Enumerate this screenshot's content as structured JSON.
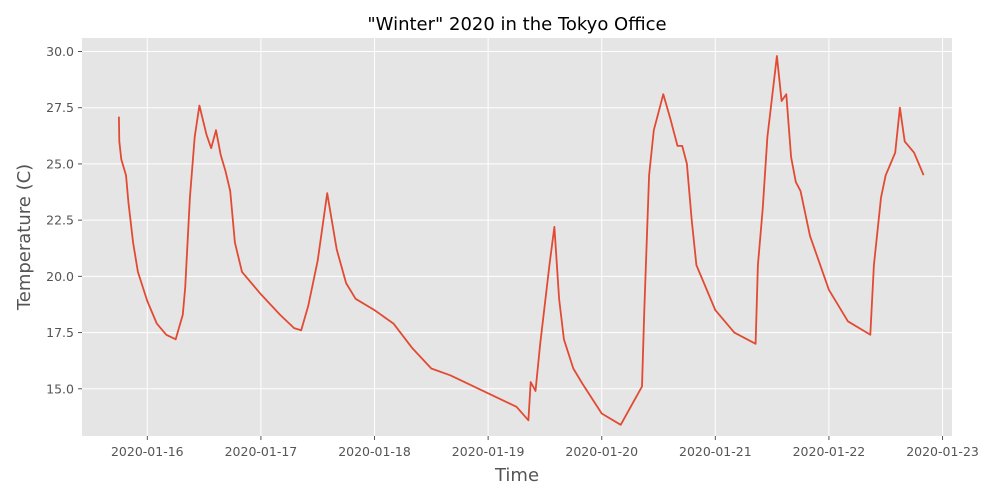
{
  "chart_data": {
    "type": "line",
    "title": "\"Winter\" 2020 in the Tokyo Office",
    "xlabel": "Time",
    "ylabel": "Temperature (C)",
    "x_tick_labels": [
      "2020-01-16",
      "2020-01-17",
      "2020-01-18",
      "2020-01-19",
      "2020-01-20",
      "2020-01-21",
      "2020-01-22",
      "2020-01-23"
    ],
    "y_tick_labels": [
      "15.0",
      "17.5",
      "20.0",
      "22.5",
      "25.0",
      "27.5",
      "30.0"
    ],
    "xlim": [
      "2020-01-15 10:12",
      "2020-01-23 02:00"
    ],
    "ylim": [
      12.9,
      30.6
    ],
    "grid": true,
    "colors": {
      "line": "#E24A33",
      "plot_background": "#E5E5E5",
      "grid": "#FFFFFF"
    },
    "series": [
      {
        "x": [
          "2020-01-15 18:00",
          "2020-01-15 18:05",
          "2020-01-15 18:30",
          "2020-01-15 19:30",
          "2020-01-15 20:00",
          "2020-01-15 21:00",
          "2020-01-15 22:00",
          "2020-01-16 00:00",
          "2020-01-16 02:00",
          "2020-01-16 04:00",
          "2020-01-16 06:00",
          "2020-01-16 07:30",
          "2020-01-16 08:00",
          "2020-01-16 09:00",
          "2020-01-16 10:00",
          "2020-01-16 11:00",
          "2020-01-16 12:30",
          "2020-01-16 13:30",
          "2020-01-16 14:30",
          "2020-01-16 15:30",
          "2020-01-16 16:30",
          "2020-01-16 17:30",
          "2020-01-16 18:30",
          "2020-01-16 20:00",
          "2020-01-17 00:00",
          "2020-01-17 04:00",
          "2020-01-17 07:00",
          "2020-01-17 08:30",
          "2020-01-17 10:00",
          "2020-01-17 12:00",
          "2020-01-17 14:00",
          "2020-01-17 16:00",
          "2020-01-17 18:00",
          "2020-01-17 20:00",
          "2020-01-18 00:00",
          "2020-01-18 04:00",
          "2020-01-18 08:00",
          "2020-01-18 12:00",
          "2020-01-18 16:00",
          "2020-01-19 00:00",
          "2020-01-19 06:00",
          "2020-01-19 08:30",
          "2020-01-19 09:00",
          "2020-01-19 10:00",
          "2020-01-19 11:00",
          "2020-01-19 13:00",
          "2020-01-19 14:00",
          "2020-01-19 15:00",
          "2020-01-19 16:00",
          "2020-01-19 18:00",
          "2020-01-19 20:00",
          "2020-01-20 00:00",
          "2020-01-20 04:00",
          "2020-01-20 08:30",
          "2020-01-20 09:00",
          "2020-01-20 10:00",
          "2020-01-20 11:00",
          "2020-01-20 13:00",
          "2020-01-20 14:30",
          "2020-01-20 16:00",
          "2020-01-20 17:00",
          "2020-01-20 18:00",
          "2020-01-20 19:00",
          "2020-01-20 20:00",
          "2020-01-21 00:00",
          "2020-01-21 04:00",
          "2020-01-21 08:30",
          "2020-01-21 09:00",
          "2020-01-21 10:00",
          "2020-01-21 11:00",
          "2020-01-21 13:00",
          "2020-01-21 14:00",
          "2020-01-21 15:00",
          "2020-01-21 16:00",
          "2020-01-21 17:00",
          "2020-01-21 18:00",
          "2020-01-21 20:00",
          "2020-01-22 00:00",
          "2020-01-22 04:00",
          "2020-01-22 08:00",
          "2020-01-22 08:45",
          "2020-01-22 09:30",
          "2020-01-22 11:00",
          "2020-01-22 12:00",
          "2020-01-22 13:00",
          "2020-01-22 14:00",
          "2020-01-22 15:00",
          "2020-01-22 16:00",
          "2020-01-22 18:00",
          "2020-01-22 20:00"
        ],
        "y": [
          27.1,
          26.0,
          25.2,
          24.5,
          23.3,
          21.5,
          20.2,
          18.9,
          17.9,
          17.4,
          17.2,
          18.3,
          19.5,
          23.5,
          26.2,
          27.6,
          26.3,
          25.7,
          26.5,
          25.4,
          24.7,
          23.8,
          21.5,
          20.2,
          19.2,
          18.3,
          17.7,
          17.6,
          18.7,
          20.7,
          23.7,
          21.2,
          19.7,
          19.0,
          18.5,
          17.9,
          16.8,
          15.9,
          15.6,
          14.8,
          14.2,
          13.6,
          15.3,
          14.9,
          17.0,
          20.6,
          22.2,
          19.0,
          17.2,
          15.9,
          15.2,
          13.9,
          13.4,
          15.1,
          18.5,
          24.5,
          26.5,
          28.1,
          27.0,
          25.8,
          25.8,
          25.0,
          22.5,
          20.5,
          18.5,
          17.5,
          17.0,
          20.5,
          23.0,
          26.2,
          29.8,
          27.8,
          28.1,
          25.3,
          24.2,
          23.8,
          21.8,
          19.4,
          18.0,
          17.5,
          17.4,
          20.5,
          23.5,
          24.5,
          25.0,
          25.5,
          27.5,
          26.0,
          25.5,
          24.5
        ]
      }
    ]
  }
}
